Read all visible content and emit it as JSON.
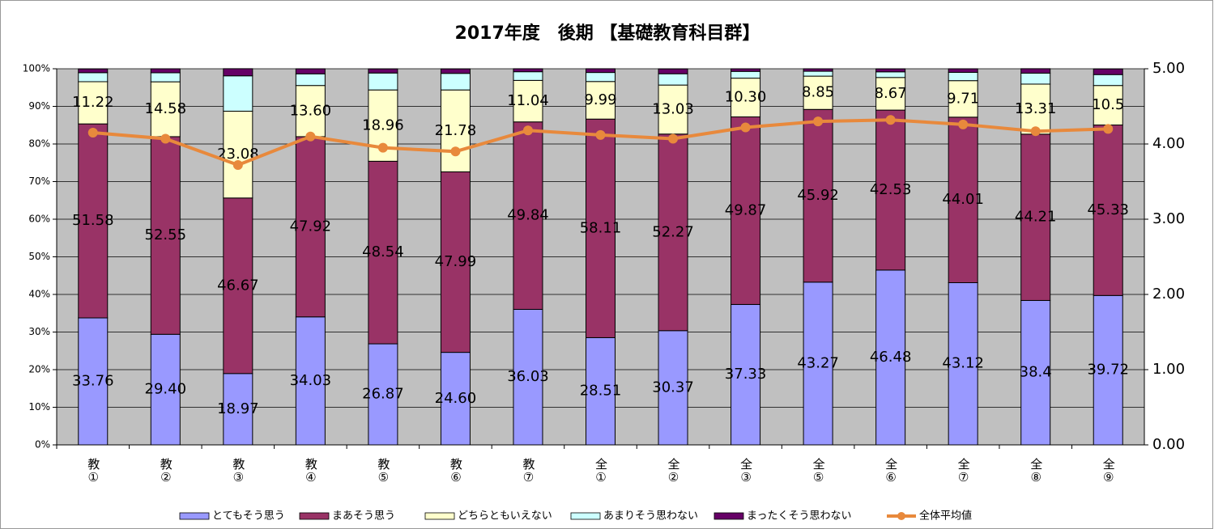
{
  "chart_data": {
    "type": "bar",
    "stacked": true,
    "title": "2017年度　後期 【基礎教育科目群】",
    "categories": [
      "教①",
      "教②",
      "教③",
      "教④",
      "教⑤",
      "教⑥",
      "教⑦",
      "全①",
      "全②",
      "全③",
      "全⑤",
      "全⑥",
      "全⑦",
      "全⑧",
      "全⑨"
    ],
    "series": [
      {
        "name": "とてもそう思う",
        "color": "#9999ff",
        "values": [
          33.76,
          29.4,
          18.97,
          34.03,
          26.87,
          24.6,
          36.03,
          28.51,
          30.37,
          37.33,
          43.27,
          46.48,
          43.12,
          38.4,
          39.72
        ],
        "value_labels": [
          "33.76",
          "29.40",
          "18.97",
          "34.03",
          "26.87",
          "24.60",
          "36.03",
          "28.51",
          "30.37",
          "37.33",
          "43.27",
          "46.48",
          "43.12",
          "38.4",
          "39.72"
        ]
      },
      {
        "name": "まあそう思う",
        "color": "#993366",
        "values": [
          51.58,
          52.55,
          46.67,
          47.92,
          48.54,
          47.99,
          49.84,
          58.11,
          52.27,
          49.87,
          45.92,
          42.53,
          44.01,
          44.21,
          45.33
        ],
        "value_labels": [
          "51.58",
          "52.55",
          "46.67",
          "47.92",
          "48.54",
          "47.99",
          "49.84",
          "58.11",
          "52.27",
          "49.87",
          "45.92",
          "42.53",
          "44.01",
          "44.21",
          "45.33"
        ]
      },
      {
        "name": "どちらともいえない",
        "color": "#ffffcc",
        "values": [
          11.22,
          14.58,
          23.08,
          13.6,
          18.96,
          21.78,
          11.04,
          9.99,
          13.03,
          10.3,
          8.85,
          8.67,
          9.71,
          13.31,
          10.5
        ],
        "value_labels": [
          "11.22",
          "14.58",
          "23.08",
          "13.60",
          "18.96",
          "21.78",
          "11.04",
          "9.99",
          "13.03",
          "10.30",
          "8.85",
          "8.67",
          "9.71",
          "13.31",
          "10.5"
        ]
      },
      {
        "name": "あまりそう思わない",
        "color": "#ccffff",
        "values": [
          2.4,
          2.4,
          9.4,
          3.1,
          4.5,
          4.4,
          2.3,
          2.4,
          3.0,
          1.8,
          1.3,
          1.5,
          2.2,
          2.9,
          2.9
        ]
      },
      {
        "name": "まったくそう思わない",
        "color": "#660066",
        "values": [
          1.0,
          1.07,
          1.9,
          1.35,
          1.1,
          1.2,
          0.8,
          1.0,
          1.3,
          0.7,
          0.66,
          0.8,
          0.96,
          1.2,
          1.5
        ]
      },
      {
        "name": "全体平均値",
        "color": "#e8893c",
        "type": "line",
        "axis": "y2",
        "values": [
          4.15,
          4.07,
          3.72,
          4.1,
          3.95,
          3.9,
          4.18,
          4.12,
          4.07,
          4.22,
          4.3,
          4.32,
          4.26,
          4.17,
          4.2
        ]
      }
    ],
    "ylim": [
      0,
      100
    ],
    "yticks": [
      {
        "value": 0,
        "label": "0%"
      },
      {
        "value": 10,
        "label": "10%"
      },
      {
        "value": 20,
        "label": "20%"
      },
      {
        "value": 30,
        "label": "30%"
      },
      {
        "value": 40,
        "label": "40%"
      },
      {
        "value": 50,
        "label": "50%"
      },
      {
        "value": 60,
        "label": "60%"
      },
      {
        "value": 70,
        "label": "70%"
      },
      {
        "value": 80,
        "label": "80%"
      },
      {
        "value": 90,
        "label": "90%"
      },
      {
        "value": 100,
        "label": "100%"
      }
    ],
    "y2lim": [
      0,
      5
    ],
    "y2ticks": [
      {
        "value": 0,
        "label": "0.00"
      },
      {
        "value": 1,
        "label": "1.00"
      },
      {
        "value": 2,
        "label": "2.00"
      },
      {
        "value": 3,
        "label": "3.00"
      },
      {
        "value": 4,
        "label": "4.00"
      },
      {
        "value": 5,
        "label": "5.00"
      }
    ],
    "grid": true,
    "legend": "bottom"
  }
}
